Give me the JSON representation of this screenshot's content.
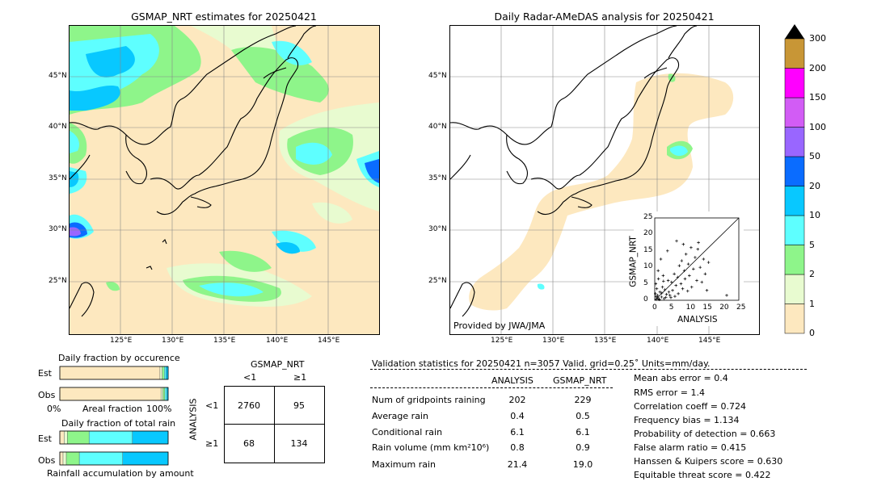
{
  "colors": {
    "land_tan": "#fde8bf",
    "c0": "#fde8bf",
    "c1": "#e8fbd0",
    "c2": "#8ef58a",
    "c5": "#5effff",
    "c10": "#08c8ff",
    "c20": "#0a6cff",
    "c50": "#9966ff",
    "c100": "#d25cf5",
    "c150": "#ff00ff",
    "c200": "#c89636"
  },
  "left_map": {
    "title": "GSMAP_NRT estimates for 20250421",
    "lat_labels": [
      "45°N",
      "40°N",
      "35°N",
      "30°N",
      "25°N"
    ],
    "lon_labels": [
      "125°E",
      "130°E",
      "135°E",
      "140°E",
      "145°E"
    ]
  },
  "right_map": {
    "title": "Daily Radar-AMeDAS analysis for 20250421",
    "lat_labels": [
      "45°N",
      "40°N",
      "35°N",
      "30°N",
      "25°N"
    ],
    "lon_labels": [
      "125°E",
      "130°E",
      "135°E",
      "140°E",
      "145°E"
    ],
    "credit": "Provided by JWA/JMA"
  },
  "scatter": {
    "xlabel": "ANALYSIS",
    "ylabel": "GSMAP_NRT",
    "ticks": [
      "0",
      "5",
      "10",
      "15",
      "20",
      "25"
    ]
  },
  "colorbar": {
    "labels": [
      "0",
      "1",
      "2",
      "5",
      "10",
      "20",
      "50",
      "100",
      "150",
      "200",
      "300"
    ]
  },
  "fraction_occurrence": {
    "title": "Daily fraction by occurence",
    "rows": [
      "Est",
      "Obs"
    ],
    "axis_left": "0%",
    "axis_mid": "Areal fraction",
    "axis_right": "100%"
  },
  "fraction_total": {
    "title": "Daily fraction of total rain",
    "rows": [
      "Est",
      "Obs"
    ],
    "footer": "Rainfall accumulation by amount"
  },
  "contingency": {
    "title": "GSMAP_NRT",
    "col_labels": [
      "<1",
      "≥1"
    ],
    "row_axis": "ANALYSIS",
    "row_labels": [
      "<1",
      "≥1"
    ],
    "values": [
      [
        "2760",
        "95"
      ],
      [
        "68",
        "134"
      ]
    ]
  },
  "validation": {
    "header": "Validation statistics for 20250421  n=3057 Valid. grid=0.25˚ Units=mm/day.",
    "col_analysis": "ANALYSIS",
    "col_gsmap": "GSMAP_NRT",
    "rows": [
      {
        "label": "Num of gridpoints raining",
        "analysis": "202",
        "gsmap": "229"
      },
      {
        "label": "Average rain",
        "analysis": "0.4",
        "gsmap": "0.5"
      },
      {
        "label": "Conditional rain",
        "analysis": "6.1",
        "gsmap": "6.1"
      },
      {
        "label": "Rain volume (mm km²10⁶)",
        "analysis": "0.8",
        "gsmap": "0.9"
      },
      {
        "label": "Maximum rain",
        "analysis": "21.4",
        "gsmap": "19.0"
      }
    ],
    "scores": [
      "Mean abs error =    0.4",
      "RMS error =    1.4",
      "Correlation coeff =  0.724",
      "Frequency bias =  1.134",
      "Probability of detection =  0.663",
      "False alarm ratio =  0.415",
      "Hanssen & Kuipers score =  0.630",
      "Equitable threat score =  0.422"
    ]
  },
  "chart_data": [
    {
      "type": "heatmap",
      "title": "GSMAP_NRT estimates for 20250421",
      "xlabel": "",
      "ylabel": "",
      "x_ticks": [
        "125°E",
        "130°E",
        "135°E",
        "140°E",
        "145°E"
      ],
      "y_ticks": [
        "45°N",
        "40°N",
        "35°N",
        "30°N",
        "25°N"
      ],
      "color_levels": [
        0,
        1,
        2,
        5,
        10,
        20,
        50,
        100,
        150,
        200,
        300
      ],
      "units": "mm/day"
    },
    {
      "type": "heatmap",
      "title": "Daily Radar-AMeDAS analysis for 20250421",
      "xlabel": "",
      "ylabel": "",
      "x_ticks": [
        "125°E",
        "130°E",
        "135°E",
        "140°E",
        "145°E"
      ],
      "y_ticks": [
        "45°N",
        "40°N",
        "35°N",
        "30°N",
        "25°N"
      ],
      "color_levels": [
        0,
        1,
        2,
        5,
        10,
        20,
        50,
        100,
        150,
        200,
        300
      ],
      "units": "mm/day"
    },
    {
      "type": "scatter",
      "title": "",
      "xlabel": "ANALYSIS",
      "ylabel": "GSMAP_NRT",
      "xlim": [
        0,
        25
      ],
      "ylim": [
        0,
        25
      ],
      "x_ticks": [
        0,
        5,
        10,
        15,
        20,
        25
      ],
      "y_ticks": [
        0,
        5,
        10,
        15,
        20,
        25
      ],
      "diagonal": true,
      "points": [
        [
          0.5,
          0.3
        ],
        [
          0.8,
          1.5
        ],
        [
          1.2,
          0.4
        ],
        [
          1.5,
          2.5
        ],
        [
          2.0,
          1.0
        ],
        [
          2.3,
          4.0
        ],
        [
          2.8,
          0.5
        ],
        [
          3.0,
          3.2
        ],
        [
          3.5,
          1.8
        ],
        [
          4.0,
          6.0
        ],
        [
          4.2,
          2.5
        ],
        [
          4.8,
          0.8
        ],
        [
          5.0,
          5.5
        ],
        [
          5.3,
          3.0
        ],
        [
          5.8,
          8.0
        ],
        [
          6.0,
          1.2
        ],
        [
          6.3,
          4.5
        ],
        [
          6.8,
          7.0
        ],
        [
          7.0,
          2.0
        ],
        [
          7.3,
          10.5
        ],
        [
          7.8,
          5.0
        ],
        [
          8.0,
          12.0
        ],
        [
          8.3,
          3.5
        ],
        [
          8.8,
          9.0
        ],
        [
          9.0,
          6.5
        ],
        [
          9.3,
          14.0
        ],
        [
          9.8,
          2.8
        ],
        [
          10.0,
          11.0
        ],
        [
          10.3,
          7.5
        ],
        [
          10.8,
          16.0
        ],
        [
          11.0,
          4.0
        ],
        [
          11.5,
          9.5
        ],
        [
          12.0,
          13.0
        ],
        [
          12.5,
          6.0
        ],
        [
          13.0,
          17.5
        ],
        [
          13.5,
          10.0
        ],
        [
          14.0,
          5.5
        ],
        [
          14.5,
          12.5
        ],
        [
          15.0,
          8.0
        ],
        [
          15.5,
          3.0
        ],
        [
          16.0,
          11.5
        ],
        [
          1.0,
          9.0
        ],
        [
          1.8,
          12.5
        ],
        [
          2.5,
          7.5
        ],
        [
          0.3,
          5.0
        ],
        [
          3.8,
          15.0
        ],
        [
          6.5,
          18.0
        ],
        [
          8.5,
          17.0
        ],
        [
          12.8,
          15.5
        ],
        [
          21.4,
          1.5
        ],
        [
          0.2,
          2.0
        ],
        [
          0.6,
          3.5
        ],
        [
          1.1,
          6.5
        ],
        [
          0.9,
          0.8
        ],
        [
          1.4,
          0.2
        ],
        [
          2.1,
          2.2
        ],
        [
          0.4,
          1.1
        ],
        [
          3.3,
          0.9
        ],
        [
          4.5,
          1.5
        ],
        [
          2.6,
          5.8
        ]
      ]
    },
    {
      "type": "bar",
      "title": "Daily fraction by occurence",
      "categories": [
        "Est",
        "Obs"
      ],
      "xlabel": "Areal fraction",
      "xlim": [
        0,
        100
      ],
      "series": [
        {
          "values": [
            92.5,
            93.4
          ]
        },
        {
          "values": [
            2.0,
            1.8
          ]
        },
        {
          "values": [
            2.0,
            1.8
          ]
        },
        {
          "values": [
            1.5,
            1.6
          ]
        },
        {
          "values": [
            2.0,
            1.4
          ]
        }
      ]
    },
    {
      "type": "bar",
      "title": "Daily fraction of total rain",
      "categories": [
        "Est",
        "Obs"
      ],
      "xlabel": "Rainfall accumulation by amount",
      "xlim": [
        0,
        100
      ],
      "series": [
        {
          "values": [
            4,
            3
          ]
        },
        {
          "values": [
            3,
            3
          ]
        },
        {
          "values": [
            20,
            12
          ]
        },
        {
          "values": [
            40,
            40
          ]
        },
        {
          "values": [
            33,
            42
          ]
        }
      ]
    },
    {
      "type": "table",
      "title": "GSMAP_NRT",
      "columns": [
        "<1",
        "≥1"
      ],
      "rows": [
        "<1",
        "≥1"
      ],
      "row_axis": "ANALYSIS",
      "values": [
        [
          2760,
          95
        ],
        [
          68,
          134
        ]
      ]
    }
  ]
}
